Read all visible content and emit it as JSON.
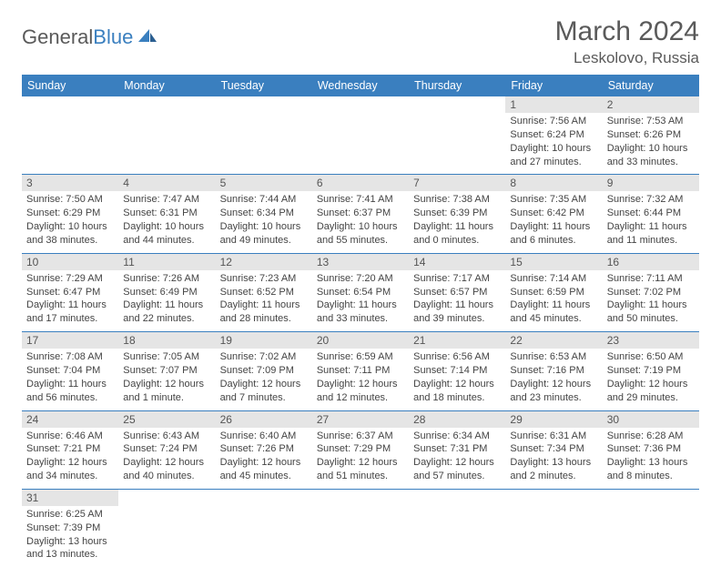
{
  "brand": {
    "part1": "General",
    "part2": "Blue"
  },
  "title": "March 2024",
  "location": "Leskolovo, Russia",
  "colors": {
    "headerBg": "#3a7fbf",
    "headerText": "#ffffff",
    "dayBg": "#e5e5e5",
    "pageBg": "#ffffff",
    "text": "#444444",
    "border": "#3a7fbf"
  },
  "dayNames": [
    "Sunday",
    "Monday",
    "Tuesday",
    "Wednesday",
    "Thursday",
    "Friday",
    "Saturday"
  ],
  "weeks": [
    [
      null,
      null,
      null,
      null,
      null,
      {
        "d": "1",
        "sr": "7:56 AM",
        "ss": "6:24 PM",
        "dl": "10 hours and 27 minutes."
      },
      {
        "d": "2",
        "sr": "7:53 AM",
        "ss": "6:26 PM",
        "dl": "10 hours and 33 minutes."
      }
    ],
    [
      {
        "d": "3",
        "sr": "7:50 AM",
        "ss": "6:29 PM",
        "dl": "10 hours and 38 minutes."
      },
      {
        "d": "4",
        "sr": "7:47 AM",
        "ss": "6:31 PM",
        "dl": "10 hours and 44 minutes."
      },
      {
        "d": "5",
        "sr": "7:44 AM",
        "ss": "6:34 PM",
        "dl": "10 hours and 49 minutes."
      },
      {
        "d": "6",
        "sr": "7:41 AM",
        "ss": "6:37 PM",
        "dl": "10 hours and 55 minutes."
      },
      {
        "d": "7",
        "sr": "7:38 AM",
        "ss": "6:39 PM",
        "dl": "11 hours and 0 minutes."
      },
      {
        "d": "8",
        "sr": "7:35 AM",
        "ss": "6:42 PM",
        "dl": "11 hours and 6 minutes."
      },
      {
        "d": "9",
        "sr": "7:32 AM",
        "ss": "6:44 PM",
        "dl": "11 hours and 11 minutes."
      }
    ],
    [
      {
        "d": "10",
        "sr": "7:29 AM",
        "ss": "6:47 PM",
        "dl": "11 hours and 17 minutes."
      },
      {
        "d": "11",
        "sr": "7:26 AM",
        "ss": "6:49 PM",
        "dl": "11 hours and 22 minutes."
      },
      {
        "d": "12",
        "sr": "7:23 AM",
        "ss": "6:52 PM",
        "dl": "11 hours and 28 minutes."
      },
      {
        "d": "13",
        "sr": "7:20 AM",
        "ss": "6:54 PM",
        "dl": "11 hours and 33 minutes."
      },
      {
        "d": "14",
        "sr": "7:17 AM",
        "ss": "6:57 PM",
        "dl": "11 hours and 39 minutes."
      },
      {
        "d": "15",
        "sr": "7:14 AM",
        "ss": "6:59 PM",
        "dl": "11 hours and 45 minutes."
      },
      {
        "d": "16",
        "sr": "7:11 AM",
        "ss": "7:02 PM",
        "dl": "11 hours and 50 minutes."
      }
    ],
    [
      {
        "d": "17",
        "sr": "7:08 AM",
        "ss": "7:04 PM",
        "dl": "11 hours and 56 minutes."
      },
      {
        "d": "18",
        "sr": "7:05 AM",
        "ss": "7:07 PM",
        "dl": "12 hours and 1 minute."
      },
      {
        "d": "19",
        "sr": "7:02 AM",
        "ss": "7:09 PM",
        "dl": "12 hours and 7 minutes."
      },
      {
        "d": "20",
        "sr": "6:59 AM",
        "ss": "7:11 PM",
        "dl": "12 hours and 12 minutes."
      },
      {
        "d": "21",
        "sr": "6:56 AM",
        "ss": "7:14 PM",
        "dl": "12 hours and 18 minutes."
      },
      {
        "d": "22",
        "sr": "6:53 AM",
        "ss": "7:16 PM",
        "dl": "12 hours and 23 minutes."
      },
      {
        "d": "23",
        "sr": "6:50 AM",
        "ss": "7:19 PM",
        "dl": "12 hours and 29 minutes."
      }
    ],
    [
      {
        "d": "24",
        "sr": "6:46 AM",
        "ss": "7:21 PM",
        "dl": "12 hours and 34 minutes."
      },
      {
        "d": "25",
        "sr": "6:43 AM",
        "ss": "7:24 PM",
        "dl": "12 hours and 40 minutes."
      },
      {
        "d": "26",
        "sr": "6:40 AM",
        "ss": "7:26 PM",
        "dl": "12 hours and 45 minutes."
      },
      {
        "d": "27",
        "sr": "6:37 AM",
        "ss": "7:29 PM",
        "dl": "12 hours and 51 minutes."
      },
      {
        "d": "28",
        "sr": "6:34 AM",
        "ss": "7:31 PM",
        "dl": "12 hours and 57 minutes."
      },
      {
        "d": "29",
        "sr": "6:31 AM",
        "ss": "7:34 PM",
        "dl": "13 hours and 2 minutes."
      },
      {
        "d": "30",
        "sr": "6:28 AM",
        "ss": "7:36 PM",
        "dl": "13 hours and 8 minutes."
      }
    ],
    [
      {
        "d": "31",
        "sr": "6:25 AM",
        "ss": "7:39 PM",
        "dl": "13 hours and 13 minutes."
      },
      null,
      null,
      null,
      null,
      null,
      null
    ]
  ],
  "labels": {
    "sunrise": "Sunrise: ",
    "sunset": "Sunset: ",
    "daylight": "Daylight: "
  }
}
